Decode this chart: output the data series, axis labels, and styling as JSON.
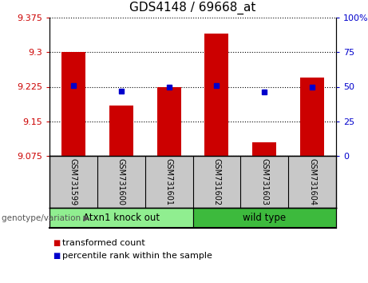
{
  "title": "GDS4148 / 69668_at",
  "samples": [
    "GSM731599",
    "GSM731600",
    "GSM731601",
    "GSM731602",
    "GSM731603",
    "GSM731604"
  ],
  "red_values": [
    9.3,
    9.185,
    9.225,
    9.34,
    9.105,
    9.245
  ],
  "blue_percentiles": [
    51,
    47,
    50,
    51,
    46,
    50
  ],
  "y_min": 9.075,
  "y_max": 9.375,
  "y_ticks": [
    9.075,
    9.15,
    9.225,
    9.3,
    9.375
  ],
  "y_tick_labels": [
    "9.075",
    "9.15",
    "9.225",
    "9.3",
    "9.375"
  ],
  "right_y_ticks": [
    0,
    25,
    50,
    75,
    100
  ],
  "right_y_tick_labels": [
    "0",
    "25",
    "50",
    "75",
    "100%"
  ],
  "groups": [
    {
      "label": "Atxn1 knock out",
      "start": 0,
      "end": 3,
      "color": "#90ee90"
    },
    {
      "label": "wild type",
      "start": 3,
      "end": 6,
      "color": "#3dba3d"
    }
  ],
  "group_label_prefix": "genotype/variation",
  "bar_color": "#cc0000",
  "marker_color": "#0000cc",
  "bar_width": 0.5,
  "plot_bg_color": "#ffffff",
  "sample_bg_color": "#c8c8c8",
  "legend_red_label": "transformed count",
  "legend_blue_label": "percentile rank within the sample",
  "title_fontsize": 11,
  "tick_fontsize": 8,
  "sample_fontsize": 7,
  "group_fontsize": 8.5,
  "legend_fontsize": 8
}
